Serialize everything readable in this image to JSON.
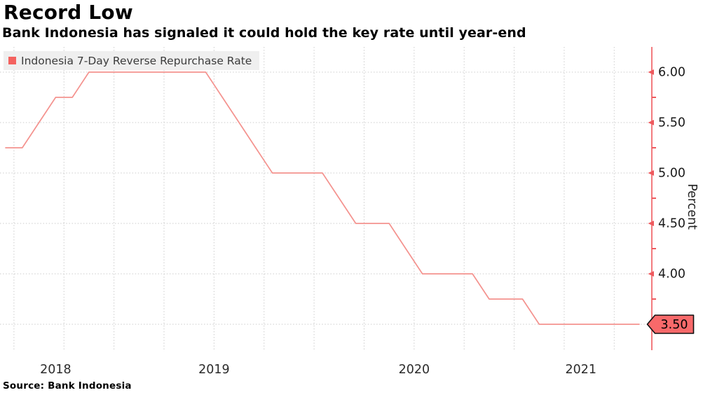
{
  "header": {
    "title": "Record Low",
    "subtitle": "Bank Indonesia has signaled it could hold the key rate until year-end"
  },
  "legend": {
    "label": "Indonesia 7-Day Reverse Repurchase Rate",
    "swatch_color": "#f4625f",
    "background": "#efefef"
  },
  "source": {
    "text": "Source: Bank Indonesia"
  },
  "chart_data": {
    "type": "line",
    "title": "Record Low",
    "subtitle": "Bank Indonesia has signaled it could hold the key rate until year-end",
    "ylabel": "Percent",
    "ylim": [
      3.25,
      6.25
    ],
    "y_ticks": [
      "6.00",
      "5.50",
      "5.00",
      "4.50",
      "4.00",
      "3.50"
    ],
    "minor_tick_step": 0.25,
    "x_tick_labels": [
      "2018",
      "2019",
      "2020",
      "2021"
    ],
    "grid": "dotted horizontal and quarterly vertical",
    "legend_position": "top-left",
    "axis_color": "#ee5a5e",
    "grid_color": "#cccccc",
    "last_value": {
      "label": "3.50",
      "value": 3.5,
      "badge_fill": "#f8696a",
      "badge_stroke": "#111111"
    },
    "series": [
      {
        "name": "Indonesia 7-Day Reverse Repurchase Rate",
        "color": "#f4928e",
        "x": [
          "2018-06",
          "2018-07",
          "2018-08",
          "2018-09",
          "2018-10",
          "2018-11",
          "2018-12",
          "2019-01",
          "2019-02",
          "2019-03",
          "2019-04",
          "2019-05",
          "2019-06",
          "2019-07",
          "2019-08",
          "2019-09",
          "2019-10",
          "2019-11",
          "2019-12",
          "2020-01",
          "2020-02",
          "2020-03",
          "2020-04",
          "2020-05",
          "2020-06",
          "2020-07",
          "2020-08",
          "2020-09",
          "2020-10",
          "2020-11",
          "2020-12",
          "2021-01",
          "2021-02",
          "2021-03",
          "2021-04",
          "2021-05",
          "2021-06",
          "2021-07",
          "2021-08"
        ],
        "values": [
          5.25,
          5.25,
          5.5,
          5.75,
          5.75,
          6,
          6,
          6,
          6,
          6,
          6,
          6,
          6,
          5.75,
          5.5,
          5.25,
          5,
          5,
          5,
          5,
          4.75,
          4.5,
          4.5,
          4.5,
          4.25,
          4,
          4,
          4,
          4,
          3.75,
          3.75,
          3.75,
          3.5,
          3.5,
          3.5,
          3.5,
          3.5,
          3.5,
          3.5
        ]
      }
    ]
  }
}
